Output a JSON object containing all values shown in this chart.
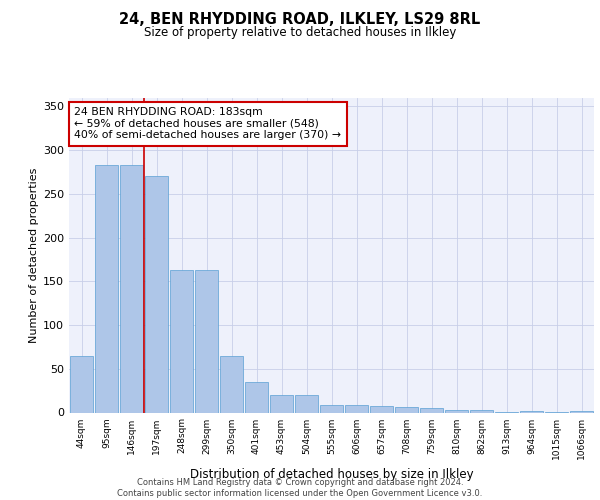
{
  "title_line1": "24, BEN RHYDDING ROAD, ILKLEY, LS29 8RL",
  "title_line2": "Size of property relative to detached houses in Ilkley",
  "xlabel": "Distribution of detached houses by size in Ilkley",
  "ylabel": "Number of detached properties",
  "categories": [
    "44sqm",
    "95sqm",
    "146sqm",
    "197sqm",
    "248sqm",
    "299sqm",
    "350sqm",
    "401sqm",
    "453sqm",
    "504sqm",
    "555sqm",
    "606sqm",
    "657sqm",
    "708sqm",
    "759sqm",
    "810sqm",
    "862sqm",
    "913sqm",
    "964sqm",
    "1015sqm",
    "1066sqm"
  ],
  "values": [
    65,
    283,
    283,
    270,
    163,
    163,
    65,
    35,
    20,
    20,
    9,
    9,
    8,
    6,
    5,
    3,
    3,
    1,
    2,
    1,
    2
  ],
  "bar_color": "#aec6e8",
  "bar_edge_color": "#5a9fd4",
  "vline_color": "#cc0000",
  "annotation_text": "24 BEN RHYDDING ROAD: 183sqm\n← 59% of detached houses are smaller (548)\n40% of semi-detached houses are larger (370) →",
  "annotation_box_color": "#ffffff",
  "annotation_box_edge": "#cc0000",
  "ylim": [
    0,
    360
  ],
  "yticks": [
    0,
    50,
    100,
    150,
    200,
    250,
    300,
    350
  ],
  "footer_text": "Contains HM Land Registry data © Crown copyright and database right 2024.\nContains public sector information licensed under the Open Government Licence v3.0.",
  "background_color": "#eef1fb",
  "grid_color": "#c8cfe8"
}
